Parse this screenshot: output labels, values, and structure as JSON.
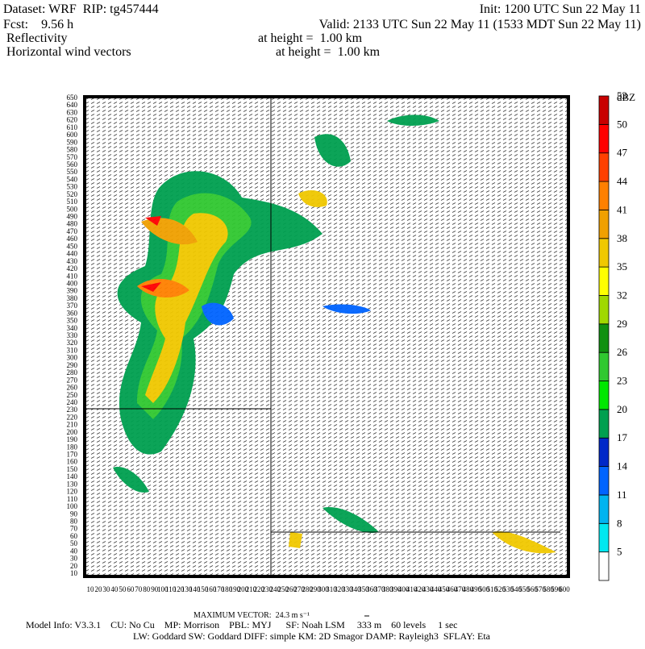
{
  "header": {
    "dataset": "Dataset: WRF  RIP: tg457444",
    "init": "Init: 1200 UTC Sun 22 May 11",
    "fcst": "Fcst:    9.56 h",
    "valid": "Valid: 2133 UTC Sun 22 May 11 (1533 MDT Sun 22 May 11)",
    "field1": "Reflectivity",
    "field1_level": "at height =  1.00 km",
    "field2": "Horizontal wind vectors",
    "field2_level": "at height =  1.00 km"
  },
  "y_labels": [
    "10",
    "20",
    "30",
    "40",
    "50",
    "60",
    "70",
    "80",
    "90",
    "100",
    "110",
    "120",
    "130",
    "140",
    "150",
    "160",
    "170",
    "180",
    "190",
    "200",
    "210",
    "220",
    "230",
    "240",
    "250",
    "260",
    "270",
    "280",
    "290",
    "300",
    "310",
    "320",
    "330",
    "340",
    "350",
    "360",
    "370",
    "380",
    "390",
    "400",
    "410",
    "420",
    "430",
    "440",
    "450",
    "460",
    "470",
    "480",
    "490",
    "500",
    "510",
    "520",
    "530",
    "540",
    "550",
    "560",
    "570",
    "580",
    "590",
    "600",
    "610",
    "620",
    "630",
    "640",
    "650"
  ],
  "x_labels": [
    "10",
    "20",
    "30",
    "40",
    "50",
    "60",
    "70",
    "80",
    "90",
    "100",
    "110",
    "120",
    "130",
    "140",
    "150",
    "160",
    "170",
    "180",
    "190",
    "200",
    "210",
    "220",
    "230",
    "240",
    "250",
    "260",
    "270",
    "280",
    "290",
    "300",
    "310",
    "320",
    "330",
    "340",
    "350",
    "360",
    "370",
    "380",
    "390",
    "400",
    "410",
    "420",
    "430",
    "440",
    "450",
    "460",
    "470",
    "480",
    "490",
    "500",
    "510",
    "520",
    "530",
    "540",
    "550",
    "560",
    "570",
    "580",
    "590",
    "600"
  ],
  "colorbar": {
    "unit": "dBZ",
    "labels": [
      "5",
      "8",
      "11",
      "14",
      "17",
      "20",
      "23",
      "26",
      "29",
      "32",
      "35",
      "38",
      "41",
      "44",
      "47",
      "50",
      "53"
    ],
    "colors": [
      "#ffffff",
      "#00e8f0",
      "#00b4f0",
      "#0064ff",
      "#0028c8",
      "#00a050",
      "#00e800",
      "#30c830",
      "#109010",
      "#a0d800",
      "#ffff00",
      "#f0c800",
      "#f0a000",
      "#ff8000",
      "#ff4000",
      "#ff0000",
      "#c80000"
    ]
  },
  "footer": {
    "max_vector": "MAXIMUM VECTOR:  24.3 m s⁻¹",
    "model_info": "Model Info: V3.3.1    CU: No Cu    MP: Morrison    PBL: MYJ      SF: Noah LSM     333 m    60 levels     1 sec",
    "physics": "LW: Goddard SW: Goddard DIFF: simple KM: 2D Smagor DAMP: Rayleigh3  SFLAY: Eta"
  }
}
